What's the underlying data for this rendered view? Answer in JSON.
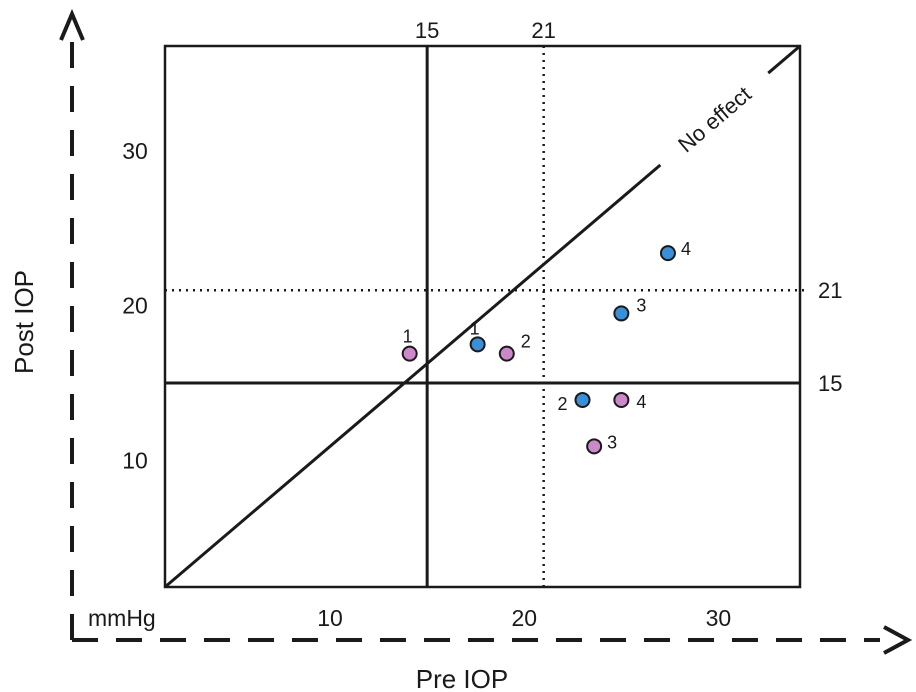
{
  "chart_data": {
    "type": "scatter",
    "title": "",
    "xlabel": "Pre IOP",
    "ylabel": "Post IOP",
    "unit_label": "mmHg",
    "xlim": [
      1.5,
      34.2
    ],
    "ylim": [
      1.8,
      36.8
    ],
    "x_ticks": [
      10,
      20,
      30
    ],
    "y_ticks": [
      10,
      20,
      30
    ],
    "grid": false,
    "reference_lines": {
      "vertical_solid": 15,
      "vertical_dotted": 21,
      "horizontal_solid": 15,
      "horizontal_dotted": 21,
      "top_labels": [
        "15",
        "21"
      ],
      "right_labels": [
        "21",
        "15"
      ]
    },
    "diagonal_label": "No effect",
    "colors": {
      "blue": "#3a8fd6",
      "pink": "#cc88c8",
      "line": "#1a1a1a"
    },
    "series": [
      {
        "color": "#3a8fd6",
        "points": [
          {
            "label": "1",
            "x": 17.6,
            "y": 17.5
          },
          {
            "label": "2",
            "x": 23.0,
            "y": 13.9
          },
          {
            "label": "3",
            "x": 25.0,
            "y": 19.5
          },
          {
            "label": "4",
            "x": 27.4,
            "y": 23.4
          }
        ]
      },
      {
        "color": "#cc88c8",
        "points": [
          {
            "label": "1",
            "x": 14.1,
            "y": 16.9
          },
          {
            "label": "2",
            "x": 19.1,
            "y": 16.9
          },
          {
            "label": "3",
            "x": 23.6,
            "y": 10.9
          },
          {
            "label": "4",
            "x": 25.0,
            "y": 13.9
          }
        ]
      }
    ]
  }
}
